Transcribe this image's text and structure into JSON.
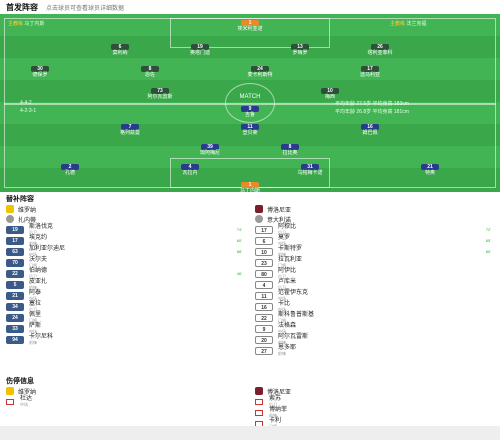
{
  "header": {
    "title": "首发阵容",
    "note": "点击球员可查看球员详细数据"
  },
  "pitch": {
    "home_coach_label": "主教练",
    "home_coach": "马丁内斯",
    "away_coach_label": "主教练",
    "away_coach": "法兰克福",
    "home_formation": "4-4-2",
    "away_formation": "4-2-3-1",
    "home_stat": "平均年龄 27.5岁 平均身高 183cm",
    "away_stat": "平均年龄 26.8岁 平均身高 181cm",
    "center_label": "MATCH"
  },
  "home_players": [
    {
      "num": "1",
      "name": "埃米利亚诺",
      "gk": true
    },
    {
      "num": "6",
      "name": "莫利纳"
    },
    {
      "num": "19",
      "name": "奥塔门迪"
    },
    {
      "num": "13",
      "name": "罗梅罗"
    },
    {
      "num": "26",
      "name": "塔利亚菲科"
    },
    {
      "num": "30",
      "name": "德保罗"
    },
    {
      "num": "8",
      "name": "恩佐"
    },
    {
      "num": "24",
      "name": "麦卡利斯特"
    },
    {
      "num": "17",
      "name": "迪马利亚"
    },
    {
      "num": "73",
      "name": "阿尔瓦雷斯"
    },
    {
      "num": "10",
      "name": "梅西"
    }
  ],
  "away_players": [
    {
      "num": "1",
      "name": "马丁内斯",
      "gk": true
    },
    {
      "num": "2",
      "name": "孔德"
    },
    {
      "num": "4",
      "name": "瓦拉内"
    },
    {
      "num": "31",
      "name": "乌帕梅卡诺"
    },
    {
      "num": "21",
      "name": "特奥"
    },
    {
      "num": "39",
      "name": "琼阿梅尼"
    },
    {
      "num": "8",
      "name": "拉比奥"
    },
    {
      "num": "7",
      "name": "格列兹曼"
    },
    {
      "num": "11",
      "name": "登贝莱"
    },
    {
      "num": "16",
      "name": "姆巴佩"
    },
    {
      "num": "9",
      "name": "吉鲁"
    }
  ],
  "subs": {
    "title": "替补阵容",
    "home_team": "维罗纳",
    "away_team": "博洛尼亚",
    "home_coach": "扎内蒂",
    "away_coach": "意大利诺",
    "home_list": [
      {
        "num": "19",
        "name": "斯洛伐克",
        "pos": "后卫",
        "evt": "74'"
      },
      {
        "num": "17",
        "name": "埃克约",
        "pos": "前锋",
        "evt": "60'"
      },
      {
        "num": "63",
        "name": "加利亚尔迪尼",
        "pos": "中场",
        "evt": "88'"
      },
      {
        "num": "70",
        "name": "沃尔夫",
        "pos": "门将",
        "evt": ""
      },
      {
        "num": "22",
        "name": "伯纳德",
        "pos": "后卫",
        "evt": "46'"
      },
      {
        "num": "5",
        "name": "皮亚扎",
        "pos": "前锋",
        "evt": ""
      },
      {
        "num": "21",
        "name": "阿泰",
        "pos": "中场",
        "evt": ""
      },
      {
        "num": "34",
        "name": "塞拉",
        "pos": "后卫",
        "evt": ""
      },
      {
        "num": "24",
        "name": "佩里",
        "pos": "门将",
        "evt": ""
      },
      {
        "num": "33",
        "name": "萨斯",
        "pos": "中场",
        "evt": ""
      },
      {
        "num": "94",
        "name": "卡尔尼科",
        "pos": "前锋",
        "evt": ""
      }
    ],
    "away_list": [
      {
        "num": "17",
        "name": "阿穆比",
        "pos": "后卫",
        "evt": "72'"
      },
      {
        "num": "6",
        "name": "莫罗",
        "pos": "中场",
        "evt": "65'"
      },
      {
        "num": "10",
        "name": "卡斯特罗",
        "pos": "前锋",
        "evt": "80'"
      },
      {
        "num": "23",
        "name": "拉瓦利亚",
        "pos": "门将",
        "evt": ""
      },
      {
        "num": "80",
        "name": "阿伊比",
        "pos": "后卫",
        "evt": ""
      },
      {
        "num": "4",
        "name": "卢库米",
        "pos": "后卫",
        "evt": ""
      },
      {
        "num": "11",
        "name": "范霍伊东克",
        "pos": "中场",
        "evt": ""
      },
      {
        "num": "16",
        "name": "卡比",
        "pos": "中场",
        "evt": ""
      },
      {
        "num": "22",
        "name": "斯科鲁普斯基",
        "pos": "门将",
        "evt": ""
      },
      {
        "num": "9",
        "name": "法格森",
        "pos": "中场",
        "evt": ""
      },
      {
        "num": "20",
        "name": "阿尔瓦雷斯",
        "pos": "前锋",
        "evt": ""
      },
      {
        "num": "27",
        "name": "恩多耶",
        "pos": "前锋",
        "evt": ""
      }
    ]
  },
  "injuries": {
    "title": "伤停信息",
    "home_team": "维罗纳",
    "away_team": "博洛尼亚",
    "home_list": [
      {
        "name": "杜达",
        "pos": "中场"
      }
    ],
    "away_list": [
      {
        "name": "索苏",
        "pos": "后卫"
      },
      {
        "name": "博纳菲",
        "pos": "前锋"
      },
      {
        "name": "卡利",
        "pos": "门将"
      }
    ]
  }
}
